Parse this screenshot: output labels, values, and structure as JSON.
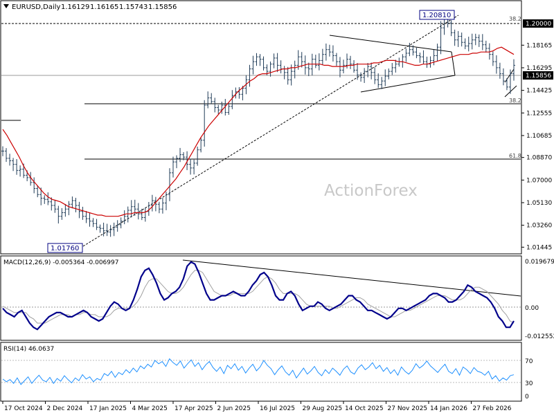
{
  "colors": {
    "background": "#ffffff",
    "border": "#000000",
    "candle": "#1f3b57",
    "ma": "#cc0000",
    "macd": "#00008b",
    "signal": "#a0a0a0",
    "rsi": "#1e90ff",
    "watermark": "#c8c8c8",
    "price_box": "#000080"
  },
  "chart_data": [
    {
      "type": "candlestick",
      "title": "EURUSD,Daily",
      "ohlc": [
        "1.16129",
        "1.16165",
        "1.15743",
        "1.15856"
      ],
      "watermark": "ActionForex",
      "ylim": [
        1.0095,
        1.2179
      ],
      "y_ticks": [
        "1.20000",
        "1.18165",
        "1.16295",
        "1.14425",
        "1.12555",
        "1.10685",
        "1.08870",
        "1.07000",
        "1.05130",
        "1.03260",
        "1.01445"
      ],
      "y_ticks_shown": [
        1.18165,
        1.16295,
        1.14425,
        1.12555,
        1.10685,
        1.0887,
        1.07,
        1.0513,
        1.0326,
        1.01445
      ],
      "x_labels": [
        "17 Oct 2024",
        "2 Dec 2024",
        "17 Jan 2025",
        "4 Mar 2025",
        "17 Apr 2025",
        "2 Jun 2025",
        "16 Jul 2025",
        "29 Aug 2025",
        "14 Oct 2025",
        "27 Nov 2025",
        "14 Jan 2026",
        "27 Feb 2026"
      ],
      "current_price": "1.15856",
      "current_value": 1.15856,
      "level_boxes": [
        {
          "label": "1.20000",
          "value": 1.2
        }
      ],
      "annotations": [
        {
          "label": "1.20810",
          "value": 1.2081,
          "date": "2026-01-27"
        },
        {
          "label": "1.01760",
          "value": 1.0176,
          "date": "2025-01-13"
        }
      ],
      "fib_levels": [
        {
          "label": "38.2",
          "value": 1.1347
        },
        {
          "label": "61.8",
          "value": 1.0902
        }
      ],
      "moving_average": "red line",
      "closes": [
        1.094,
        1.088,
        1.086,
        1.083,
        1.078,
        1.079,
        1.074,
        1.072,
        1.068,
        1.063,
        1.058,
        1.055,
        1.054,
        1.052,
        1.049,
        1.046,
        1.04,
        1.043,
        1.046,
        1.05,
        1.053,
        1.049,
        1.044,
        1.04,
        1.038,
        1.036,
        1.034,
        1.031,
        1.03,
        1.028,
        1.027,
        1.029,
        1.031,
        1.033,
        1.036,
        1.04,
        1.045,
        1.048,
        1.046,
        1.042,
        1.039,
        1.044,
        1.049,
        1.053,
        1.05,
        1.046,
        1.051,
        1.058,
        1.076,
        1.085,
        1.088,
        1.091,
        1.089,
        1.083,
        1.08,
        1.084,
        1.095,
        1.103,
        1.132,
        1.138,
        1.135,
        1.13,
        1.128,
        1.132,
        1.126,
        1.131,
        1.14,
        1.143,
        1.141,
        1.146,
        1.153,
        1.162,
        1.168,
        1.172,
        1.17,
        1.163,
        1.16,
        1.166,
        1.171,
        1.165,
        1.162,
        1.159,
        1.153,
        1.16,
        1.165,
        1.172,
        1.168,
        1.163,
        1.162,
        1.17,
        1.165,
        1.169,
        1.174,
        1.178,
        1.176,
        1.173,
        1.168,
        1.161,
        1.165,
        1.17,
        1.166,
        1.161,
        1.157,
        1.155,
        1.16,
        1.164,
        1.159,
        1.153,
        1.149,
        1.152,
        1.156,
        1.16,
        1.163,
        1.166,
        1.168,
        1.172,
        1.175,
        1.178,
        1.176,
        1.173,
        1.172,
        1.168,
        1.166,
        1.169,
        1.173,
        1.18,
        1.196,
        1.205,
        1.2,
        1.192,
        1.186,
        1.189,
        1.184,
        1.181,
        1.183,
        1.186,
        1.188,
        1.185,
        1.182,
        1.179,
        1.174,
        1.168,
        1.163,
        1.158,
        1.152,
        1.147,
        1.158,
        1.165
      ],
      "ma_values": [
        1.112,
        1.107,
        1.101,
        1.095,
        1.089,
        1.082,
        1.076,
        1.071,
        1.067,
        1.063,
        1.059,
        1.056,
        1.054,
        1.053,
        1.052,
        1.05,
        1.048,
        1.047,
        1.046,
        1.045,
        1.044,
        1.043,
        1.042,
        1.041,
        1.041,
        1.04,
        1.04,
        1.04,
        1.04,
        1.041,
        1.042,
        1.042,
        1.043,
        1.043,
        1.043,
        1.044,
        1.047,
        1.051,
        1.055,
        1.059,
        1.063,
        1.067,
        1.071,
        1.076,
        1.081,
        1.087,
        1.093,
        1.099,
        1.105,
        1.11,
        1.115,
        1.119,
        1.123,
        1.127,
        1.131,
        1.135,
        1.139,
        1.143,
        1.146,
        1.149,
        1.152,
        1.154,
        1.157,
        1.158,
        1.158,
        1.159,
        1.16,
        1.161,
        1.162,
        1.162,
        1.163,
        1.163,
        1.164,
        1.165,
        1.166,
        1.166,
        1.166,
        1.166,
        1.165,
        1.165,
        1.164,
        1.164,
        1.164,
        1.164,
        1.165,
        1.165,
        1.166,
        1.166,
        1.166,
        1.166,
        1.167,
        1.167,
        1.168,
        1.169,
        1.169,
        1.169,
        1.168,
        1.168,
        1.167,
        1.166,
        1.165,
        1.165,
        1.166,
        1.166,
        1.167,
        1.168,
        1.169,
        1.17,
        1.171,
        1.172,
        1.173,
        1.174,
        1.174,
        1.174,
        1.175,
        1.175,
        1.176,
        1.176,
        1.176,
        1.177,
        1.179,
        1.18,
        1.178,
        1.176,
        1.174
      ]
    },
    {
      "type": "line",
      "title": "MACD(12,26,9) -0.005364 -0.006997",
      "y_ticks": [
        "0.019679",
        "0.00",
        "-0.012552"
      ],
      "ylim": [
        -0.0165,
        0.0222
      ],
      "series": [
        {
          "name": "MACD",
          "values": [
            -0.002,
            -0.004,
            -0.005,
            -0.006,
            -0.004,
            -0.003,
            -0.006,
            -0.009,
            -0.011,
            -0.012,
            -0.01,
            -0.008,
            -0.006,
            -0.005,
            -0.004,
            -0.004,
            -0.005,
            -0.006,
            -0.006,
            -0.005,
            -0.004,
            -0.003,
            -0.004,
            -0.006,
            -0.007,
            -0.008,
            -0.007,
            -0.004,
            -0.001,
            0.001,
            0.0,
            -0.002,
            -0.003,
            -0.002,
            0.002,
            0.007,
            0.013,
            0.016,
            0.017,
            0.014,
            0.01,
            0.005,
            0.002,
            0.003,
            0.005,
            0.006,
            0.008,
            0.012,
            0.018,
            0.02,
            0.019,
            0.015,
            0.01,
            0.005,
            0.002,
            0.002,
            0.003,
            0.004,
            0.004,
            0.005,
            0.006,
            0.005,
            0.004,
            0.004,
            0.006,
            0.009,
            0.011,
            0.014,
            0.015,
            0.013,
            0.009,
            0.004,
            0.002,
            0.002,
            0.005,
            0.006,
            0.004,
            0.0,
            -0.003,
            -0.002,
            -0.001,
            -0.001,
            0.001,
            0.0,
            -0.002,
            -0.003,
            -0.002,
            -0.001,
            0.0,
            0.002,
            0.004,
            0.004,
            0.002,
            0.001,
            -0.001,
            -0.003,
            -0.003,
            -0.004,
            -0.005,
            -0.006,
            -0.007,
            -0.006,
            -0.004,
            -0.002,
            -0.002,
            -0.003,
            -0.002,
            -0.001,
            0.0,
            0.001,
            0.002,
            0.004,
            0.005,
            0.005,
            0.004,
            0.003,
            0.001,
            0.001,
            0.002,
            0.004,
            0.006,
            0.009,
            0.008,
            0.006,
            0.005,
            0.004,
            0.003,
            0.001,
            -0.002,
            -0.006,
            -0.008,
            -0.011,
            -0.011,
            -0.008
          ]
        },
        {
          "name": "Signal",
          "values": [
            -0.001,
            -0.002,
            -0.003,
            -0.004,
            -0.004,
            -0.004,
            -0.004,
            -0.006,
            -0.007,
            -0.009,
            -0.009,
            -0.009,
            -0.008,
            -0.007,
            -0.006,
            -0.005,
            -0.005,
            -0.005,
            -0.006,
            -0.005,
            -0.005,
            -0.004,
            -0.004,
            -0.005,
            -0.005,
            -0.006,
            -0.006,
            -0.006,
            -0.005,
            -0.003,
            -0.002,
            -0.002,
            -0.002,
            -0.002,
            -0.001,
            0.001,
            0.004,
            0.008,
            0.011,
            0.012,
            0.012,
            0.01,
            0.008,
            0.006,
            0.005,
            0.005,
            0.006,
            0.008,
            0.011,
            0.014,
            0.016,
            0.016,
            0.015,
            0.012,
            0.009,
            0.006,
            0.005,
            0.004,
            0.004,
            0.004,
            0.005,
            0.005,
            0.005,
            0.005,
            0.005,
            0.006,
            0.008,
            0.01,
            0.012,
            0.013,
            0.012,
            0.01,
            0.007,
            0.005,
            0.005,
            0.005,
            0.005,
            0.004,
            0.002,
            0.0,
            -0.001,
            -0.001,
            -0.001,
            -0.001,
            -0.001,
            -0.001,
            -0.002,
            -0.002,
            -0.001,
            0.0,
            0.001,
            0.002,
            0.003,
            0.003,
            0.002,
            0.0,
            -0.001,
            -0.002,
            -0.003,
            -0.004,
            -0.005,
            -0.006,
            -0.006,
            -0.005,
            -0.004,
            -0.003,
            -0.003,
            -0.002,
            -0.001,
            0.0,
            0.001,
            0.002,
            0.003,
            0.004,
            0.004,
            0.004,
            0.003,
            0.002,
            0.002,
            0.002,
            0.003,
            0.005,
            0.007,
            0.008,
            0.008,
            0.007,
            0.006,
            0.004,
            0.002,
            0.0,
            -0.003,
            -0.005,
            -0.008,
            -0.009
          ]
        }
      ]
    },
    {
      "type": "line",
      "title": "RSI(14) 46.0637",
      "y_ticks": [
        "70",
        "30",
        "0"
      ],
      "ylim": [
        0,
        100
      ],
      "levels": [
        70,
        30
      ],
      "series": [
        {
          "name": "RSI",
          "values": [
            38,
            33,
            37,
            30,
            40,
            28,
            35,
            42,
            30,
            38,
            45,
            36,
            33,
            41,
            30,
            39,
            34,
            44,
            37,
            31,
            40,
            35,
            46,
            38,
            42,
            33,
            39,
            36,
            48,
            44,
            52,
            41,
            50,
            46,
            55,
            49,
            58,
            51,
            62,
            57,
            65,
            60,
            72,
            66,
            70,
            61,
            75,
            68,
            63,
            71,
            58,
            66,
            73,
            61,
            68,
            55,
            64,
            70,
            59,
            52,
            60,
            48,
            63,
            57,
            66,
            54,
            61,
            49,
            58,
            65,
            53,
            60,
            72,
            63,
            57,
            46,
            55,
            62,
            51,
            45,
            54,
            40,
            49,
            58,
            47,
            53,
            61,
            50,
            44,
            55,
            48,
            58,
            52,
            45,
            56,
            62,
            51,
            47,
            58,
            64,
            55,
            60,
            68,
            57,
            63,
            52,
            59,
            48,
            55,
            45,
            60,
            52,
            47,
            54,
            66,
            58,
            63,
            71,
            62,
            56,
            50,
            58,
            65,
            52,
            48,
            57,
            45,
            60,
            55,
            48,
            59,
            52,
            50,
            45,
            52,
            38,
            44,
            34,
            40,
            36,
            44,
            46
          ]
        }
      ]
    }
  ]
}
